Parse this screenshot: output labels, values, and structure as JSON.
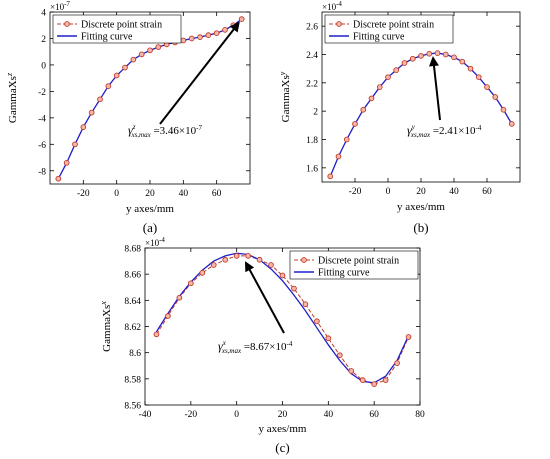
{
  "chart_data": [
    {
      "type": "line",
      "panel_label": "(a)",
      "xlabel": "y axes/mm",
      "ylabel_base": "GammaXs",
      "ylabel_sup": "z",
      "exponent": "×10",
      "exponent_power": "-7",
      "xlim": [
        -40,
        80
      ],
      "ylim": [
        -9,
        4
      ],
      "xticks": [
        -20,
        0,
        20,
        40,
        60
      ],
      "yticks": [
        -8,
        -6,
        -4,
        -2,
        0,
        2,
        4
      ],
      "legend_position": "top-left",
      "annotation": {
        "symbol": "γ",
        "sup": "z",
        "sub": "xs,max",
        "text": " =3.46×10",
        "power": "-7",
        "target_x": 75,
        "target_y": 3.46
      },
      "series": [
        {
          "name": "Discrete point strain",
          "color": "#c0392b",
          "marker": "circle",
          "x": [
            -35,
            -30,
            -25,
            -20,
            -15,
            -10,
            -5,
            0,
            5,
            10,
            15,
            20,
            25,
            30,
            35,
            40,
            45,
            50,
            55,
            60,
            65,
            70,
            75
          ],
          "y": [
            -8.6,
            -7.4,
            -6.0,
            -4.7,
            -3.6,
            -2.6,
            -1.6,
            -0.8,
            -0.2,
            0.4,
            0.8,
            1.1,
            1.35,
            1.55,
            1.7,
            1.85,
            2.0,
            2.1,
            2.25,
            2.4,
            2.65,
            3.0,
            3.46
          ]
        },
        {
          "name": "Fitting curve",
          "color": "#1f1fcc",
          "marker": "none",
          "x": [
            -35,
            -30,
            -25,
            -20,
            -15,
            -10,
            -5,
            0,
            5,
            10,
            15,
            20,
            25,
            30,
            35,
            40,
            45,
            50,
            55,
            60,
            65,
            70,
            75
          ],
          "y": [
            -8.6,
            -7.4,
            -6.0,
            -4.7,
            -3.6,
            -2.6,
            -1.6,
            -0.8,
            -0.2,
            0.4,
            0.8,
            1.1,
            1.35,
            1.55,
            1.7,
            1.85,
            2.0,
            2.1,
            2.25,
            2.4,
            2.65,
            3.0,
            3.46
          ]
        }
      ]
    },
    {
      "type": "line",
      "panel_label": "(b)",
      "xlabel": "y axes/mm",
      "ylabel_base": "GammaXs",
      "ylabel_sup": "y",
      "exponent": "×10",
      "exponent_power": "-4",
      "xlim": [
        -40,
        80
      ],
      "ylim": [
        1.5,
        2.7
      ],
      "xticks": [
        -20,
        0,
        20,
        40,
        60
      ],
      "yticks": [
        1.6,
        1.8,
        2,
        2.2,
        2.4,
        2.6
      ],
      "legend_position": "top-left",
      "annotation": {
        "symbol": "γ",
        "sup": "y",
        "sub": "xs,max",
        "text": " =2.41×10",
        "power": "-4",
        "target_x": 27,
        "target_y": 2.41
      },
      "series": [
        {
          "name": "Discrete point strain",
          "color": "#c0392b",
          "marker": "circle",
          "x": [
            -35,
            -30,
            -25,
            -20,
            -15,
            -10,
            -5,
            0,
            5,
            10,
            15,
            20,
            25,
            30,
            35,
            40,
            45,
            50,
            55,
            60,
            65,
            70,
            75
          ],
          "y": [
            1.54,
            1.68,
            1.8,
            1.91,
            2.01,
            2.09,
            2.17,
            2.24,
            2.29,
            2.34,
            2.37,
            2.39,
            2.405,
            2.41,
            2.4,
            2.38,
            2.35,
            2.3,
            2.24,
            2.17,
            2.1,
            2.01,
            1.91
          ]
        },
        {
          "name": "Fitting curve",
          "color": "#1f1fcc",
          "marker": "none",
          "x": [
            -35,
            -30,
            -25,
            -20,
            -15,
            -10,
            -5,
            0,
            5,
            10,
            15,
            20,
            25,
            30,
            35,
            40,
            45,
            50,
            55,
            60,
            65,
            70,
            75
          ],
          "y": [
            1.54,
            1.68,
            1.8,
            1.91,
            2.01,
            2.09,
            2.17,
            2.24,
            2.29,
            2.34,
            2.37,
            2.39,
            2.405,
            2.41,
            2.4,
            2.38,
            2.35,
            2.3,
            2.24,
            2.17,
            2.1,
            2.01,
            1.91
          ]
        }
      ]
    },
    {
      "type": "line",
      "panel_label": "(c)",
      "xlabel": "y axes/mm",
      "ylabel_base": "GammaXs",
      "ylabel_sup": "x",
      "exponent": "×10",
      "exponent_power": "-4",
      "xlim": [
        -40,
        80
      ],
      "ylim": [
        8.56,
        8.68
      ],
      "xticks": [
        -40,
        -20,
        0,
        20,
        40,
        60,
        80
      ],
      "yticks": [
        8.56,
        8.58,
        8.6,
        8.62,
        8.64,
        8.66,
        8.68
      ],
      "legend_position": "top-right",
      "annotation": {
        "symbol": "γ",
        "sup": "x",
        "sub": "xs,max",
        "text": " =8.67×10",
        "power": "-4",
        "target_x": 3,
        "target_y": 8.672
      },
      "series": [
        {
          "name": "Discrete point strain",
          "color": "#c0392b",
          "marker": "circle",
          "x": [
            -35,
            -30,
            -25,
            -20,
            -15,
            -10,
            -5,
            0,
            5,
            10,
            15,
            20,
            25,
            30,
            35,
            40,
            45,
            50,
            55,
            60,
            65,
            70,
            75
          ],
          "y": [
            8.614,
            8.628,
            8.642,
            8.653,
            8.661,
            8.667,
            8.671,
            8.674,
            8.674,
            8.671,
            8.667,
            8.659,
            8.649,
            8.637,
            8.624,
            8.611,
            8.598,
            8.586,
            8.579,
            8.576,
            8.579,
            8.592,
            8.612
          ]
        },
        {
          "name": "Fitting curve",
          "color": "#1f1fcc",
          "marker": "none",
          "x": [
            -35,
            -30,
            -25,
            -20,
            -15,
            -10,
            -5,
            0,
            5,
            10,
            15,
            20,
            25,
            30,
            35,
            40,
            45,
            50,
            55,
            60,
            65,
            70,
            75
          ],
          "y": [
            8.616,
            8.63,
            8.643,
            8.654,
            8.663,
            8.67,
            8.674,
            8.676,
            8.675,
            8.671,
            8.664,
            8.655,
            8.644,
            8.632,
            8.619,
            8.606,
            8.594,
            8.584,
            8.578,
            8.577,
            8.582,
            8.594,
            8.613
          ]
        }
      ]
    }
  ]
}
